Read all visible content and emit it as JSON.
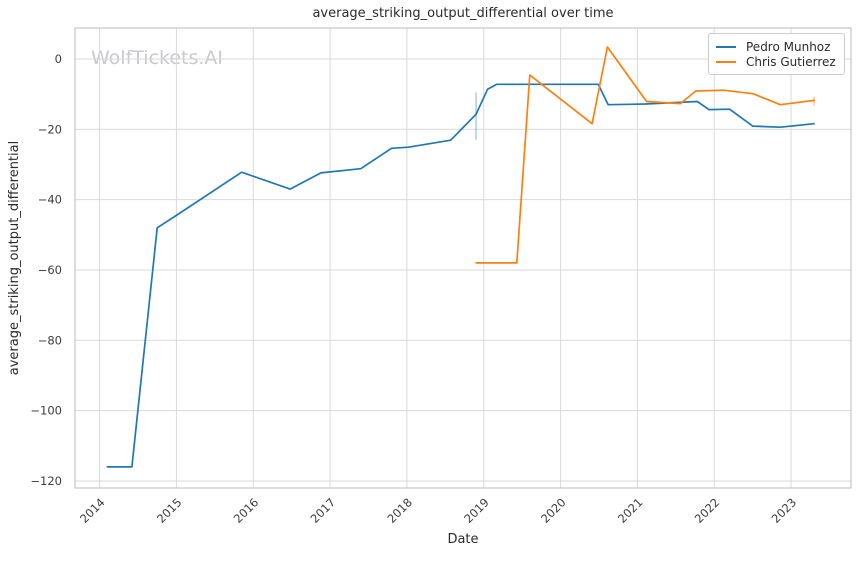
{
  "watermark": {
    "text": "WolfTickets.AI"
  },
  "chart_data": {
    "type": "line",
    "title": "average_striking_output_differential over time",
    "xlabel": "Date",
    "ylabel": "average_striking_output_differential",
    "xlim": [
      2013.68,
      2023.78
    ],
    "ylim": [
      -122,
      8.8
    ],
    "grid": true,
    "legend_position": "upper right",
    "x_ticks": [
      2014,
      2015,
      2016,
      2017,
      2018,
      2019,
      2020,
      2021,
      2022,
      2023
    ],
    "x_tick_labels": [
      "2014",
      "2015",
      "2016",
      "2017",
      "2018",
      "2019",
      "2020",
      "2021",
      "2022",
      "2023"
    ],
    "y_ticks": [
      0,
      -20,
      -40,
      -60,
      -80,
      -100,
      -120
    ],
    "y_tick_labels": [
      "0",
      "−20",
      "−40",
      "−60",
      "−80",
      "−100",
      "−120"
    ],
    "series": [
      {
        "name": "Pedro Munhoz",
        "color": "#1f77b4",
        "points": [
          [
            2014.1,
            -116
          ],
          [
            2014.42,
            -116
          ],
          [
            2014.75,
            -48
          ],
          [
            2015.0,
            -44.5
          ],
          [
            2015.85,
            -32.2
          ],
          [
            2016.48,
            -37.0
          ],
          [
            2016.88,
            -32.4
          ],
          [
            2017.4,
            -31.2
          ],
          [
            2017.8,
            -25.4
          ],
          [
            2018.02,
            -25.1
          ],
          [
            2018.57,
            -23.1
          ],
          [
            2018.9,
            -15.7
          ],
          [
            2019.05,
            -8.6
          ],
          [
            2019.17,
            -7.2
          ],
          [
            2020.49,
            -7.2
          ],
          [
            2020.62,
            -13.0
          ],
          [
            2021.1,
            -12.8
          ],
          [
            2021.78,
            -12.1
          ],
          [
            2021.93,
            -14.4
          ],
          [
            2022.2,
            -14.3
          ],
          [
            2022.5,
            -19.1
          ],
          [
            2022.86,
            -19.4
          ],
          [
            2023.3,
            -18.4
          ]
        ]
      },
      {
        "name": "Chris Gutierrez",
        "color": "#ff7f0e",
        "points": [
          [
            2018.9,
            -58.0
          ],
          [
            2019.43,
            -58.0
          ],
          [
            2019.6,
            -4.6
          ],
          [
            2020.41,
            -18.4
          ],
          [
            2020.61,
            3.4
          ],
          [
            2021.12,
            -12.1
          ],
          [
            2021.56,
            -12.7
          ],
          [
            2021.76,
            -9.1
          ],
          [
            2022.12,
            -8.9
          ],
          [
            2022.51,
            -9.9
          ],
          [
            2022.86,
            -13.0
          ],
          [
            2023.3,
            -11.8
          ]
        ]
      }
    ],
    "artifacts": [
      {
        "name": "faint-vertical-blue",
        "color": "#1f77b4",
        "opacity": 0.35,
        "x": 2018.9,
        "y1": -9.5,
        "y2": -23.0
      },
      {
        "name": "faint-vertical-orange",
        "color": "#ff7f0e",
        "opacity": 0.45,
        "x": 2023.3,
        "y1": -10.8,
        "y2": -13.2
      }
    ],
    "colors": {
      "grid": "#d9d9d9",
      "spine": "#c6c6c6",
      "tick_label": "#3d3d3d",
      "watermark": "#c9c9cd"
    }
  }
}
